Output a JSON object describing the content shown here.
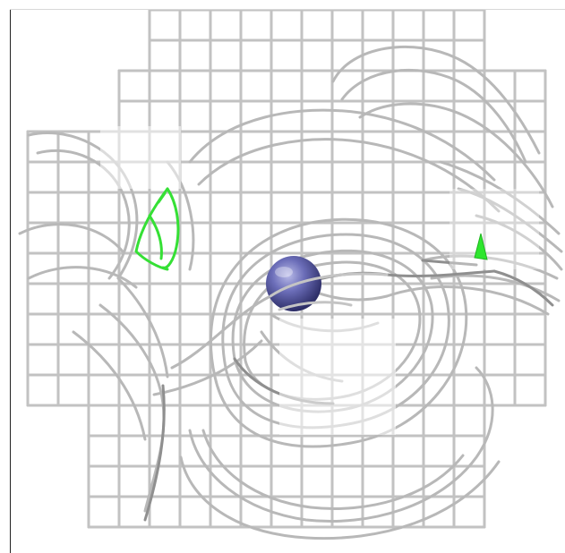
{
  "scene": {
    "title": "",
    "mesh_color": "#bdbdbd",
    "mesh_dark_color": "#8c8c8c",
    "sphere_color": "#5d5fa8",
    "highlight_color": "#2ee62e",
    "background_color": "#ffffff"
  }
}
